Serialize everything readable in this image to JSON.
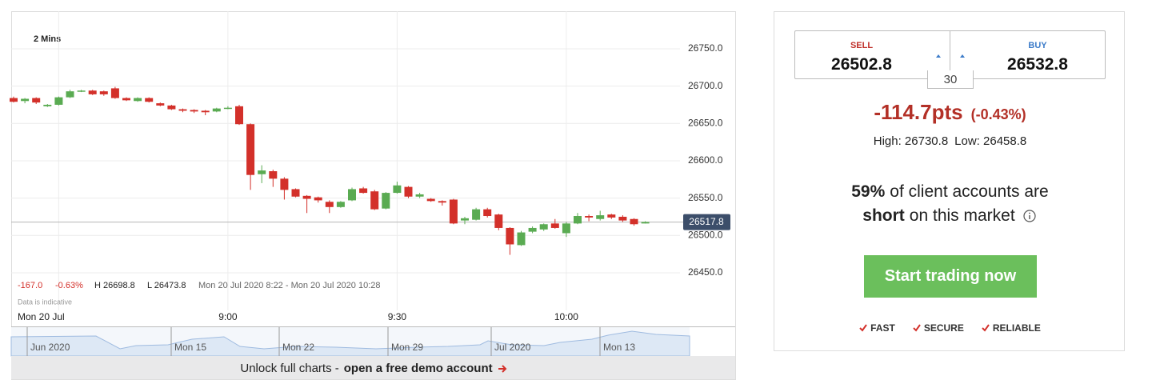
{
  "chart_data": {
    "type": "candlestick",
    "interval_label": "2 Mins",
    "x": [
      "8:22",
      "8:24",
      "8:26",
      "8:28",
      "8:30",
      "8:32",
      "8:34",
      "8:36",
      "8:38",
      "8:40",
      "8:42",
      "8:44",
      "8:46",
      "8:48",
      "8:50",
      "8:52",
      "8:54",
      "8:56",
      "8:58",
      "9:00",
      "9:02",
      "9:04",
      "9:06",
      "9:08",
      "9:10",
      "9:12",
      "9:14",
      "9:16",
      "9:18",
      "9:20",
      "9:22",
      "9:24",
      "9:26",
      "9:28",
      "9:30",
      "9:32",
      "9:34",
      "9:36",
      "9:38",
      "9:40",
      "9:42",
      "9:44",
      "9:46",
      "9:48",
      "9:50",
      "9:52",
      "9:54",
      "9:56",
      "9:58",
      "10:00",
      "10:02",
      "10:04",
      "10:06",
      "10:08",
      "10:10",
      "10:12",
      "10:14"
    ],
    "open": [
      26684,
      26680,
      26684,
      26673,
      26675,
      26685,
      26693,
      26694,
      26693,
      26697,
      26684,
      26680,
      26684,
      26677,
      26674,
      26669,
      26668,
      26667,
      26666,
      26670,
      26673,
      26649,
      26582,
      26586,
      26576,
      26562,
      26553,
      26551,
      26545,
      26538,
      26547,
      26563,
      26559,
      26536,
      26557,
      26565,
      26552,
      26549,
      26546,
      26548,
      26520,
      26521,
      26535,
      26528,
      26510,
      26487,
      26505,
      26508,
      26516,
      26503,
      26516,
      26526,
      26522,
      26528,
      26525,
      26522,
      26516
    ],
    "high": [
      26686,
      26684,
      26685,
      26676,
      26686,
      26695,
      26695,
      26695,
      26694,
      26699,
      26685,
      26685,
      26685,
      26678,
      26675,
      26670,
      26669,
      26668,
      26671,
      26673,
      26675,
      26650,
      26594,
      26588,
      26578,
      26563,
      26554,
      26552,
      26547,
      26546,
      26564,
      26565,
      26561,
      26558,
      26572,
      26566,
      26557,
      26550,
      26547,
      26549,
      26525,
      26537,
      26537,
      26529,
      26511,
      26506,
      26512,
      26516,
      26522,
      26518,
      26530,
      26528,
      26533,
      26529,
      26527,
      26523,
      26519
    ],
    "low": [
      26678,
      26677,
      26676,
      26672,
      26674,
      26684,
      26692,
      26688,
      26687,
      26683,
      26680,
      26679,
      26678,
      26673,
      26668,
      26665,
      26664,
      26661,
      26665,
      26669,
      26648,
      26561,
      26570,
      26565,
      26548,
      26551,
      26530,
      26544,
      26530,
      26537,
      26546,
      26556,
      26534,
      26535,
      26556,
      26550,
      26550,
      26545,
      26540,
      26515,
      26515,
      26520,
      26524,
      26507,
      26474,
      26486,
      26503,
      26506,
      26509,
      26498,
      26515,
      26519,
      26520,
      26522,
      26518,
      26513,
      26516
    ],
    "close": [
      26679,
      26683,
      26678,
      26675,
      26685,
      26693,
      26694,
      26689,
      26689,
      26684,
      26681,
      26684,
      26679,
      26674,
      26669,
      26667,
      26666,
      26665,
      26670,
      26671,
      26649,
      26581,
      26587,
      26576,
      26561,
      26552,
      26549,
      26547,
      26538,
      26545,
      26562,
      26557,
      26535,
      26557,
      26567,
      26552,
      26555,
      26546,
      26544,
      26516,
      26523,
      26535,
      26526,
      26510,
      26488,
      26504,
      26510,
      26515,
      26510,
      26516,
      26526,
      26524,
      26527,
      26524,
      26520,
      26515,
      26518
    ],
    "up_color": "#5aab52",
    "down_color": "#d3302a",
    "ylim": [
      26400,
      26800
    ],
    "yticks": [
      {
        "value": 26450,
        "label": "26450.0"
      },
      {
        "value": 26500,
        "label": "26500.0"
      },
      {
        "value": 26550,
        "label": "26550.0"
      },
      {
        "value": 26600,
        "label": "26600.0"
      },
      {
        "value": 26650,
        "label": "26650.0"
      },
      {
        "value": 26700,
        "label": "26700.0"
      },
      {
        "value": 26750,
        "label": "26750.0"
      }
    ],
    "xticks": [
      {
        "value": "8:30",
        "label": "Mon 20 Jul"
      },
      "9:00",
      "9:30",
      "10:00"
    ],
    "grid": true,
    "current": 26517.8,
    "summary": {
      "change": "-167.0",
      "change_pct": "-0.63%",
      "high": "H 26698.8",
      "low": "L 26473.8",
      "range": "Mon 20 Jul 2020 8:22 - Mon 20 Jul 2020 10:28"
    },
    "disclaimer": "Data is indicative"
  },
  "navigator": {
    "labels": [
      "Jun 2020",
      "Mon 15",
      "Mon 22",
      "Mon 29",
      "Jul 2020",
      "Mon 13"
    ]
  },
  "banner": {
    "text": "Unlock full charts -",
    "link": "open a free demo account"
  },
  "panel": {
    "sell_label": "SELL",
    "sell": "26502.8",
    "buy_label": "BUY",
    "buy": "26532.8",
    "spread": "30",
    "change": "-114.7pts",
    "change_pct": "(-0.43%)",
    "high": "High: 26730.8",
    "low": "Low: 26458.8",
    "sentiment_pct": "59%",
    "sentiment_text": "of client accounts are",
    "sentiment_dir": "short",
    "sentiment_tail": "on this market",
    "cta": "Start trading now",
    "features": [
      "FAST",
      "SECURE",
      "RELIABLE"
    ]
  }
}
